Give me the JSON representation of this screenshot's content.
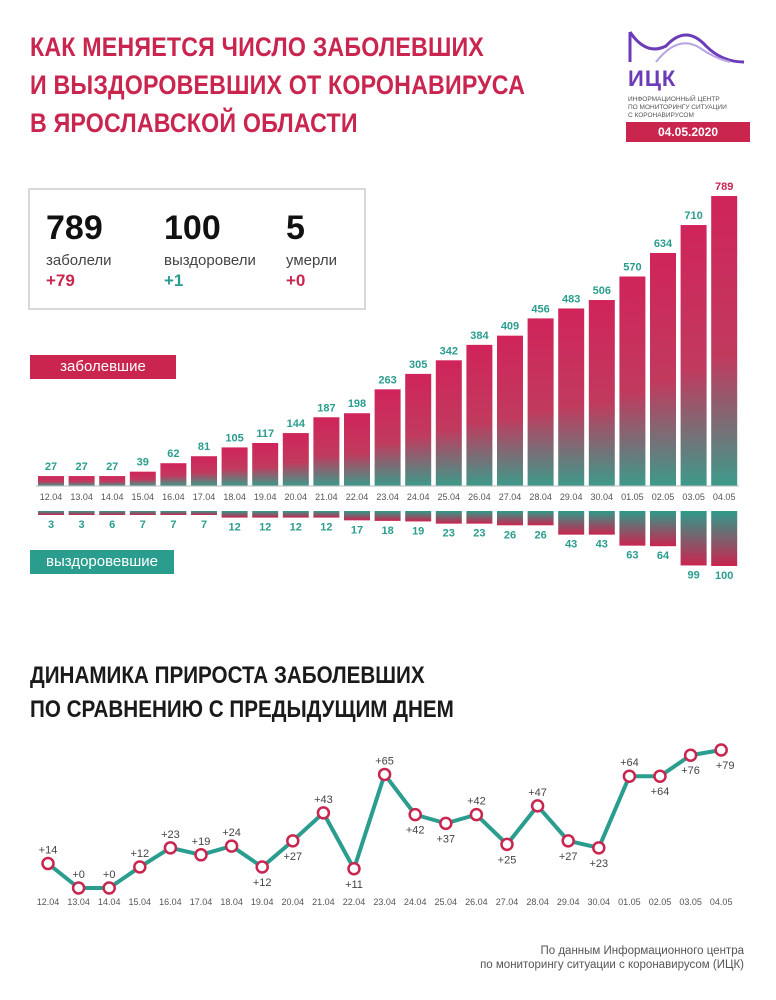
{
  "header": {
    "title_lines": [
      "КАК МЕНЯЕТСЯ ЧИСЛО ЗАБОЛЕВШИХ",
      "И ВЫЗДОРОВЕВШИХ ОТ КОРОНАВИРУСА",
      "В ЯРОСЛАВСКОЙ ОБЛАСТИ"
    ]
  },
  "logo": {
    "name": "ИЦК",
    "subtitle_lines": [
      "ИНФОРМАЦИОННЫЙ ЦЕНТР",
      "ПО МОНИТОРИНГУ СИТУАЦИИ",
      "С КОРОНАВИРУСОМ"
    ],
    "date": "04.05.2020",
    "color": "#6b3bb8"
  },
  "stats": [
    {
      "value": "789",
      "label": "заболели",
      "delta": "+79",
      "color": "#c9254f"
    },
    {
      "value": "100",
      "label": "выздоровели",
      "delta": "+1",
      "color": "#2a9d8f"
    },
    {
      "value": "5",
      "label": "умерли",
      "delta": "+0",
      "color": "#c9254f"
    }
  ],
  "legend": {
    "infected": "заболевшие",
    "recovered": "выздоровевшие"
  },
  "colors": {
    "accent": "#c9254f",
    "teal": "#2a9d8f"
  },
  "chart_data": [
    {
      "type": "bar",
      "categories": [
        "12.04",
        "13.04",
        "14.04",
        "15.04",
        "16.04",
        "17.04",
        "18.04",
        "19.04",
        "20.04",
        "21.04",
        "22.04",
        "23.04",
        "24.04",
        "25.04",
        "26.04",
        "27.04",
        "28.04",
        "29.04",
        "30.04",
        "01.05",
        "02.05",
        "03.05",
        "04.05"
      ],
      "series": [
        {
          "name": "заболевшие",
          "values": [
            27,
            27,
            27,
            39,
            62,
            81,
            105,
            117,
            144,
            187,
            198,
            263,
            305,
            342,
            384,
            409,
            456,
            483,
            506,
            570,
            634,
            710,
            789
          ]
        },
        {
          "name": "выздоровевшие",
          "values": [
            3,
            3,
            6,
            7,
            7,
            7,
            12,
            12,
            12,
            12,
            17,
            18,
            19,
            23,
            23,
            26,
            26,
            43,
            43,
            63,
            64,
            99,
            100
          ]
        }
      ],
      "title": "",
      "xlabel": "",
      "ylabel": "",
      "ylim": [
        0,
        789
      ]
    },
    {
      "type": "line",
      "title": "ДИНАМИКА ПРИРОСТА ЗАБОЛЕВШИХ ПО СРАВНЕНИЮ С ПРЕДЫДУЩИМ ДНЕМ",
      "title_lines": [
        "ДИНАМИКА ПРИРОСТА ЗАБОЛЕВШИХ",
        "ПО СРАВНЕНИЮ С ПРЕДЫДУЩИМ ДНЕМ"
      ],
      "x": [
        "12.04",
        "13.04",
        "14.04",
        "15.04",
        "16.04",
        "17.04",
        "18.04",
        "19.04",
        "20.04",
        "21.04",
        "22.04",
        "23.04",
        "24.04",
        "25.04",
        "26.04",
        "27.04",
        "28.04",
        "29.04",
        "30.04",
        "01.05",
        "02.05",
        "03.05",
        "04.05"
      ],
      "values": [
        14,
        0,
        0,
        12,
        23,
        19,
        24,
        12,
        27,
        43,
        11,
        65,
        42,
        37,
        42,
        25,
        47,
        27,
        23,
        64,
        64,
        76,
        79
      ],
      "labels": [
        "+14",
        "+0",
        "+0",
        "+12",
        "+23",
        "+19",
        "+24",
        "+12",
        "+27",
        "+43",
        "+11",
        "+65",
        "+42",
        "+37",
        "+42",
        "+25",
        "+47",
        "+27",
        "+23",
        "+64",
        "+64",
        "+76",
        "+79"
      ],
      "ylim": [
        0,
        79
      ],
      "xlabel": "",
      "ylabel": ""
    }
  ],
  "source_lines": [
    "По данным Информационного центра",
    "по мониторингу ситуации с коронавирусом (ИЦК)"
  ]
}
